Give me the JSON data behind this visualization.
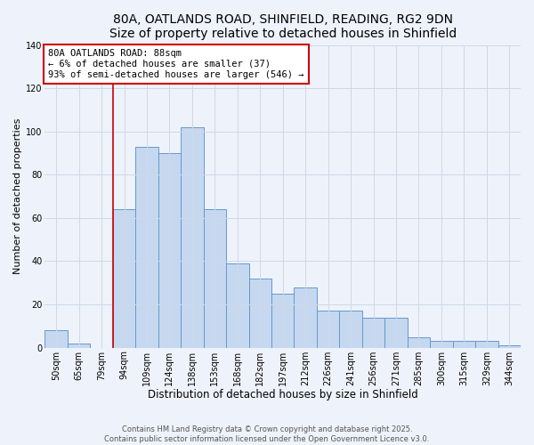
{
  "title": "80A, OATLANDS ROAD, SHINFIELD, READING, RG2 9DN",
  "subtitle": "Size of property relative to detached houses in Shinfield",
  "xlabel": "Distribution of detached houses by size in Shinfield",
  "ylabel": "Number of detached properties",
  "bin_labels": [
    "50sqm",
    "65sqm",
    "79sqm",
    "94sqm",
    "109sqm",
    "124sqm",
    "138sqm",
    "153sqm",
    "168sqm",
    "182sqm",
    "197sqm",
    "212sqm",
    "226sqm",
    "241sqm",
    "256sqm",
    "271sqm",
    "285sqm",
    "300sqm",
    "315sqm",
    "329sqm",
    "344sqm"
  ],
  "bar_heights": [
    8,
    2,
    0,
    64,
    93,
    90,
    102,
    64,
    39,
    32,
    25,
    28,
    17,
    17,
    14,
    14,
    5,
    3,
    3,
    3,
    1
  ],
  "bar_color": "#c5d8f0",
  "bar_edge_color": "#6699cc",
  "annotation_box_text": "80A OATLANDS ROAD: 88sqm\n← 6% of detached houses are smaller (37)\n93% of semi-detached houses are larger (546) →",
  "annotation_box_color": "#ffffff",
  "annotation_box_edge_color": "#cc0000",
  "vline_color": "#cc0000",
  "vline_x_index": 2.5,
  "ylim": [
    0,
    140
  ],
  "yticks": [
    0,
    20,
    40,
    60,
    80,
    100,
    120,
    140
  ],
  "grid_color": "#d0d8e8",
  "background_color": "#eef2fa",
  "footer_line1": "Contains HM Land Registry data © Crown copyright and database right 2025.",
  "footer_line2": "Contains public sector information licensed under the Open Government Licence v3.0.",
  "title_fontsize": 10,
  "xlabel_fontsize": 8.5,
  "ylabel_fontsize": 8,
  "tick_fontsize": 7,
  "annot_fontsize": 7.5,
  "footer_fontsize": 6
}
